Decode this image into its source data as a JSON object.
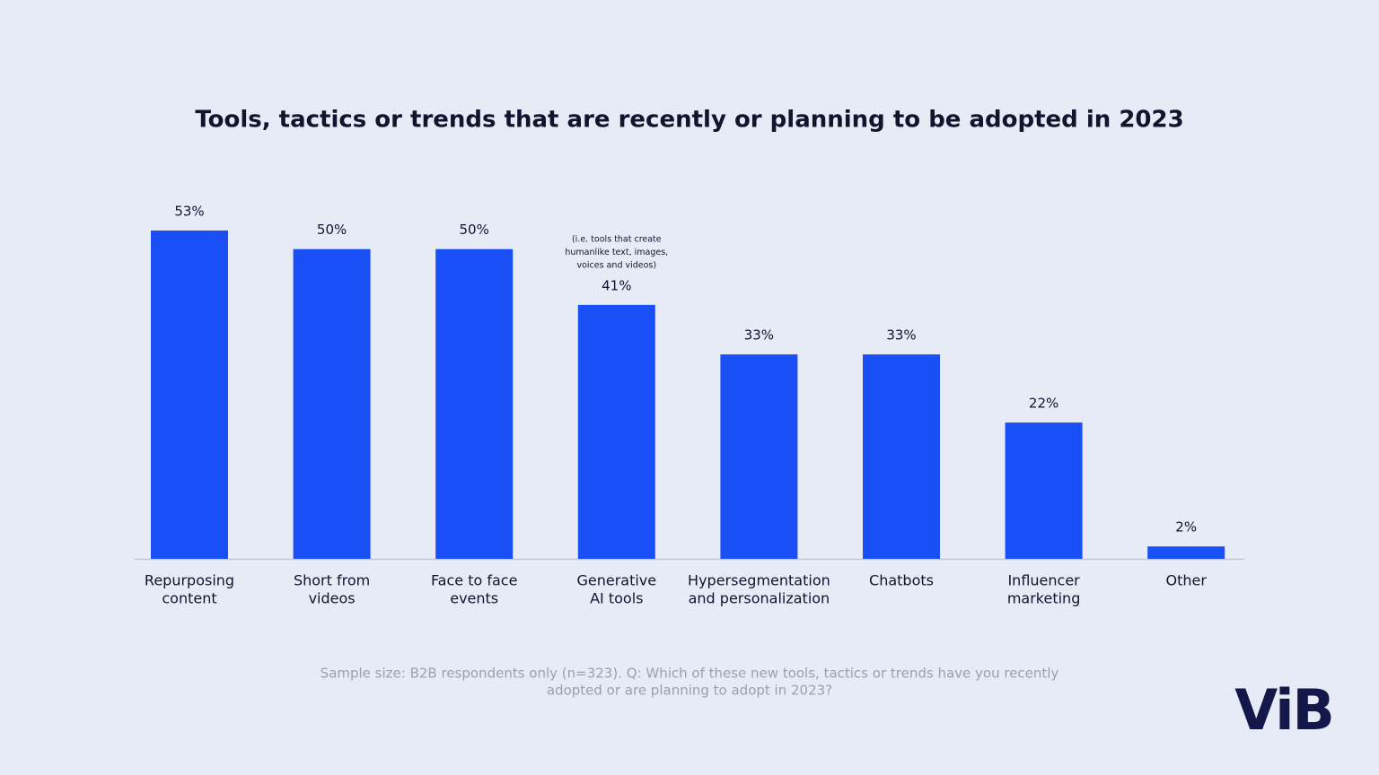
{
  "chart_data": {
    "type": "bar",
    "title": "Tools, tactics or trends that are recently or planning to be adopted in 2023",
    "categories": [
      [
        "Repurposing",
        "content"
      ],
      [
        "Short from",
        "videos"
      ],
      [
        "Face to face",
        "events"
      ],
      [
        "Generative",
        "AI tools"
      ],
      [
        "Hypersegmentation",
        "and personalization"
      ],
      [
        "Chatbots"
      ],
      [
        "Influencer",
        "marketing"
      ],
      [
        "Other"
      ]
    ],
    "values": [
      53,
      50,
      50,
      41,
      33,
      33,
      22,
      2
    ],
    "value_labels": [
      "53%",
      "50%",
      "50%",
      "41%",
      "33%",
      "33%",
      "22%",
      "2%"
    ],
    "color": "#1a4ff5",
    "annotation": [
      "(i.e. tools that create",
      "humanlike text, images,",
      "voices and videos)"
    ],
    "footnote": [
      "Sample size: B2B respondents only (n=323). Q: Which of these new tools, tactics or trends have you recently",
      "adopted or are planning to adopt in 2023?"
    ],
    "logo": "ViB"
  }
}
